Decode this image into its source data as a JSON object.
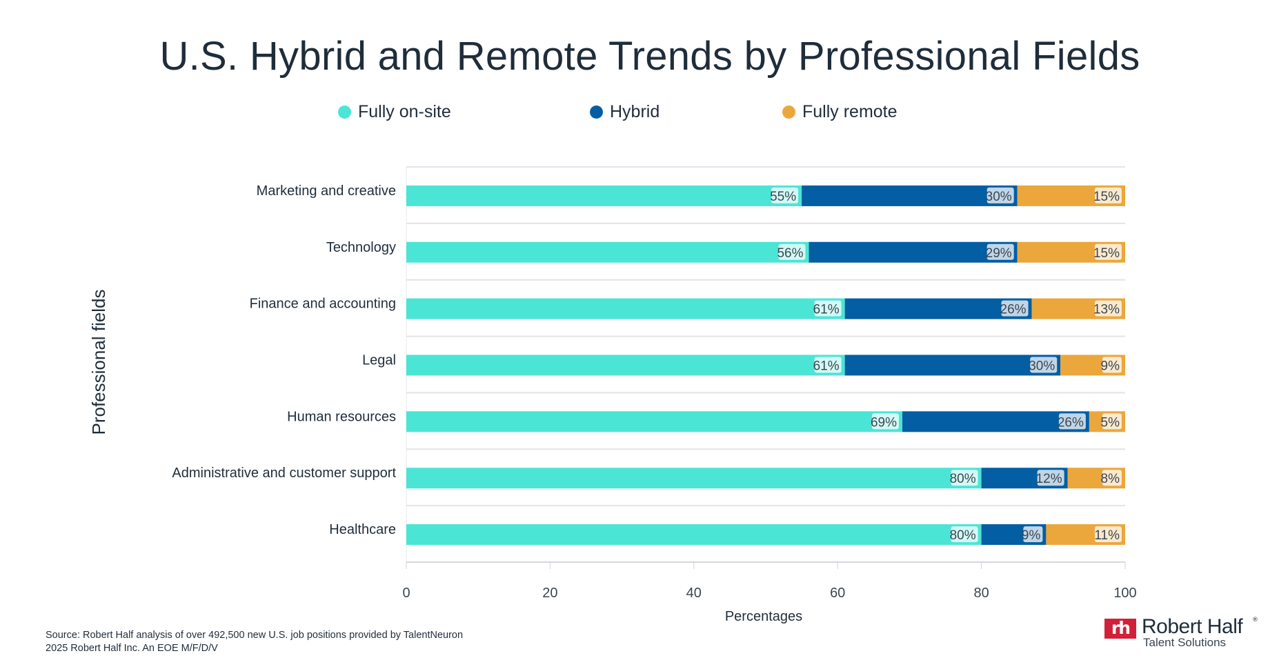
{
  "chart_data": {
    "type": "bar",
    "orientation": "horizontal",
    "stacked": true,
    "title": "U.S. Hybrid and Remote Trends by Professional Fields",
    "xlabel": "Percentages",
    "ylabel": "Professional fields",
    "xlim": [
      0,
      100
    ],
    "xticks": [
      0,
      20,
      40,
      60,
      80,
      100
    ],
    "grid": "horizontal separators",
    "legend_position": "top",
    "categories": [
      "Marketing and creative",
      "Technology",
      "Finance and accounting",
      "Legal",
      "Human resources",
      "Administrative and customer support",
      "Healthcare"
    ],
    "series": [
      {
        "name": "Fully on-site",
        "color": "#4be5d6",
        "values": [
          55,
          56,
          61,
          61,
          69,
          80,
          80
        ]
      },
      {
        "name": "Hybrid",
        "color": "#045ea3",
        "values": [
          30,
          29,
          26,
          30,
          26,
          12,
          9
        ]
      },
      {
        "name": "Fully remote",
        "color": "#eba73c",
        "values": [
          15,
          15,
          13,
          9,
          5,
          8,
          11
        ]
      }
    ],
    "value_suffix": "%"
  },
  "footer": {
    "source": "Source: Robert Half analysis of over 492,500 new U.S. job positions provided by TalentNeuron",
    "copyright": "2025 Robert Half Inc. An EOE M/F/D/V"
  },
  "logo": {
    "mark": "rh",
    "name": "Robert Half",
    "sub": "Talent Solutions"
  }
}
